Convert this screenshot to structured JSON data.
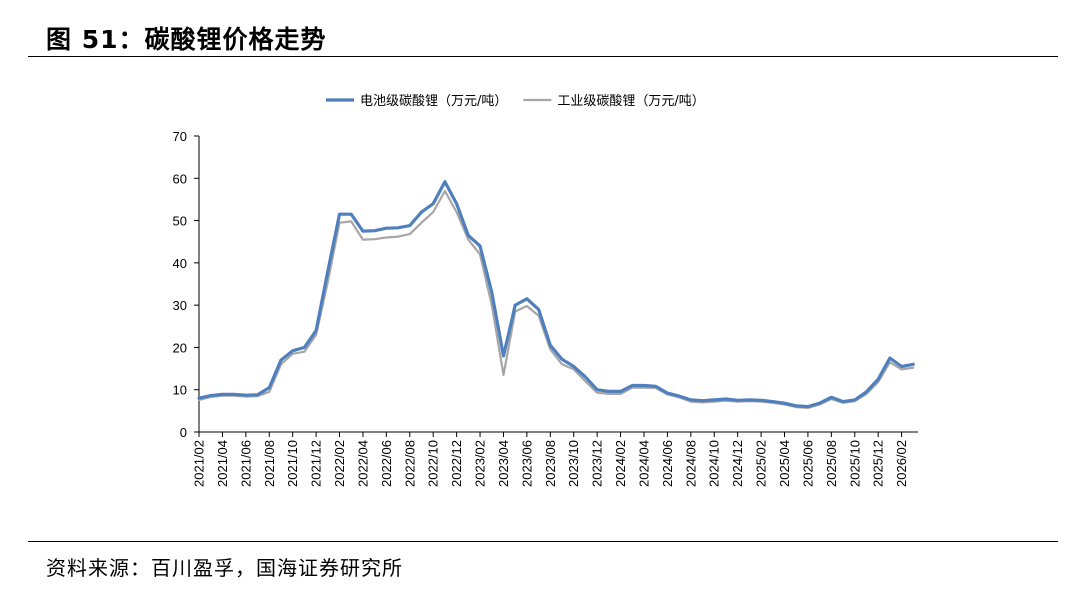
{
  "figure": {
    "title": "图 51：碳酸锂价格走势",
    "source": "资料来源：百川盈孚，国海证券研究所"
  },
  "colors": {
    "battery": "#4f7fbd",
    "industrial": "#a6a6a6",
    "axis": "#000000"
  },
  "chart_data": {
    "type": "line",
    "title": "",
    "xlabel": "",
    "ylabel": "",
    "ylim": [
      0,
      70
    ],
    "y_ticks": [
      0,
      10,
      20,
      30,
      40,
      50,
      60,
      70
    ],
    "x_ticks": [
      "2021/02",
      "2021/04",
      "2021/06",
      "2021/08",
      "2021/10",
      "2021/12",
      "2022/02",
      "2022/04",
      "2022/06",
      "2022/08",
      "2022/10",
      "2022/12",
      "2023/02",
      "2023/04",
      "2023/06",
      "2023/08",
      "2023/10",
      "2023/12",
      "2024/02",
      "2024/04",
      "2024/06",
      "2024/08",
      "2024/10",
      "2024/12",
      "2025/02",
      "2025/04",
      "2025/06",
      "2025/08",
      "2025/10",
      "2025/12",
      "2026/02"
    ],
    "grid": false,
    "legend_position": "top",
    "series": [
      {
        "name": "电池级碳酸锂（万元/吨）",
        "color_key": "battery",
        "points": [
          [
            "2021/02",
            8.0
          ],
          [
            "2021/03",
            8.6
          ],
          [
            "2021/04",
            8.9
          ],
          [
            "2021/05",
            8.9
          ],
          [
            "2021/06",
            8.7
          ],
          [
            "2021/07",
            8.8
          ],
          [
            "2021/08",
            10.5
          ],
          [
            "2021/09",
            17.0
          ],
          [
            "2021/10",
            19.2
          ],
          [
            "2021/11",
            20.0
          ],
          [
            "2021/12",
            24.0
          ],
          [
            "2022/01",
            38.0
          ],
          [
            "2022/02",
            51.5
          ],
          [
            "2022/03",
            51.5
          ],
          [
            "2022/04",
            47.5
          ],
          [
            "2022/05",
            47.6
          ],
          [
            "2022/06",
            48.2
          ],
          [
            "2022/07",
            48.3
          ],
          [
            "2022/08",
            48.8
          ],
          [
            "2022/09",
            52.0
          ],
          [
            "2022/10",
            54.0
          ],
          [
            "2022/11",
            59.2
          ],
          [
            "2022/12",
            54.0
          ],
          [
            "2023/01",
            46.5
          ],
          [
            "2023/02",
            44.0
          ],
          [
            "2023/03",
            33.0
          ],
          [
            "2023/04",
            18.0
          ],
          [
            "2023/05",
            30.0
          ],
          [
            "2023/06",
            31.5
          ],
          [
            "2023/07",
            29.0
          ],
          [
            "2023/08",
            20.5
          ],
          [
            "2023/09",
            17.2
          ],
          [
            "2023/10",
            15.5
          ],
          [
            "2023/11",
            13.0
          ],
          [
            "2023/12",
            10.0
          ],
          [
            "2024/01",
            9.6
          ],
          [
            "2024/02",
            9.6
          ],
          [
            "2024/03",
            11.0
          ],
          [
            "2024/04",
            11.0
          ],
          [
            "2024/05",
            10.8
          ],
          [
            "2024/06",
            9.2
          ],
          [
            "2024/07",
            8.5
          ],
          [
            "2024/08",
            7.6
          ],
          [
            "2024/09",
            7.4
          ],
          [
            "2024/10",
            7.6
          ],
          [
            "2024/11",
            7.8
          ],
          [
            "2024/12",
            7.5
          ],
          [
            "2025/01",
            7.6
          ],
          [
            "2025/02",
            7.5
          ],
          [
            "2025/03",
            7.2
          ],
          [
            "2025/04",
            6.8
          ],
          [
            "2025/05",
            6.2
          ],
          [
            "2025/06",
            6.0
          ],
          [
            "2025/07",
            6.8
          ],
          [
            "2025/08",
            8.2
          ],
          [
            "2025/09",
            7.2
          ],
          [
            "2025/10",
            7.6
          ],
          [
            "2025/11",
            9.5
          ],
          [
            "2025/12",
            12.5
          ],
          [
            "2026/01",
            17.5
          ],
          [
            "2026/02",
            15.5
          ],
          [
            "2026/03",
            16.0
          ]
        ]
      },
      {
        "name": "工业级碳酸锂（万元/吨）",
        "color_key": "industrial",
        "points": [
          [
            "2021/02",
            7.6
          ],
          [
            "2021/03",
            8.3
          ],
          [
            "2021/04",
            8.6
          ],
          [
            "2021/05",
            8.6
          ],
          [
            "2021/06",
            8.4
          ],
          [
            "2021/07",
            8.5
          ],
          [
            "2021/08",
            9.5
          ],
          [
            "2021/09",
            16.0
          ],
          [
            "2021/10",
            18.5
          ],
          [
            "2021/11",
            19.0
          ],
          [
            "2021/12",
            23.0
          ],
          [
            "2022/01",
            35.5
          ],
          [
            "2022/02",
            49.5
          ],
          [
            "2022/03",
            49.8
          ],
          [
            "2022/04",
            45.5
          ],
          [
            "2022/05",
            45.6
          ],
          [
            "2022/06",
            46.0
          ],
          [
            "2022/07",
            46.2
          ],
          [
            "2022/08",
            46.8
          ],
          [
            "2022/09",
            49.5
          ],
          [
            "2022/10",
            52.0
          ],
          [
            "2022/11",
            57.0
          ],
          [
            "2022/12",
            52.0
          ],
          [
            "2023/01",
            45.5
          ],
          [
            "2023/02",
            42.0
          ],
          [
            "2023/03",
            30.0
          ],
          [
            "2023/04",
            13.5
          ],
          [
            "2023/05",
            28.5
          ],
          [
            "2023/06",
            29.8
          ],
          [
            "2023/07",
            27.5
          ],
          [
            "2023/08",
            19.5
          ],
          [
            "2023/09",
            16.0
          ],
          [
            "2023/10",
            14.8
          ],
          [
            "2023/11",
            12.0
          ],
          [
            "2023/12",
            9.3
          ],
          [
            "2024/01",
            9.0
          ],
          [
            "2024/02",
            9.0
          ],
          [
            "2024/03",
            10.5
          ],
          [
            "2024/04",
            10.5
          ],
          [
            "2024/05",
            10.4
          ],
          [
            "2024/06",
            8.9
          ],
          [
            "2024/07",
            8.2
          ],
          [
            "2024/08",
            7.2
          ],
          [
            "2024/09",
            7.0
          ],
          [
            "2024/10",
            7.2
          ],
          [
            "2024/11",
            7.4
          ],
          [
            "2024/12",
            7.2
          ],
          [
            "2025/01",
            7.3
          ],
          [
            "2025/02",
            7.2
          ],
          [
            "2025/03",
            6.9
          ],
          [
            "2025/04",
            6.5
          ],
          [
            "2025/05",
            5.9
          ],
          [
            "2025/06",
            5.7
          ],
          [
            "2025/07",
            6.5
          ],
          [
            "2025/08",
            7.8
          ],
          [
            "2025/09",
            6.9
          ],
          [
            "2025/10",
            7.3
          ],
          [
            "2025/11",
            9.0
          ],
          [
            "2025/12",
            11.8
          ],
          [
            "2026/01",
            16.5
          ],
          [
            "2026/02",
            14.8
          ],
          [
            "2026/03",
            15.2
          ]
        ]
      }
    ]
  }
}
